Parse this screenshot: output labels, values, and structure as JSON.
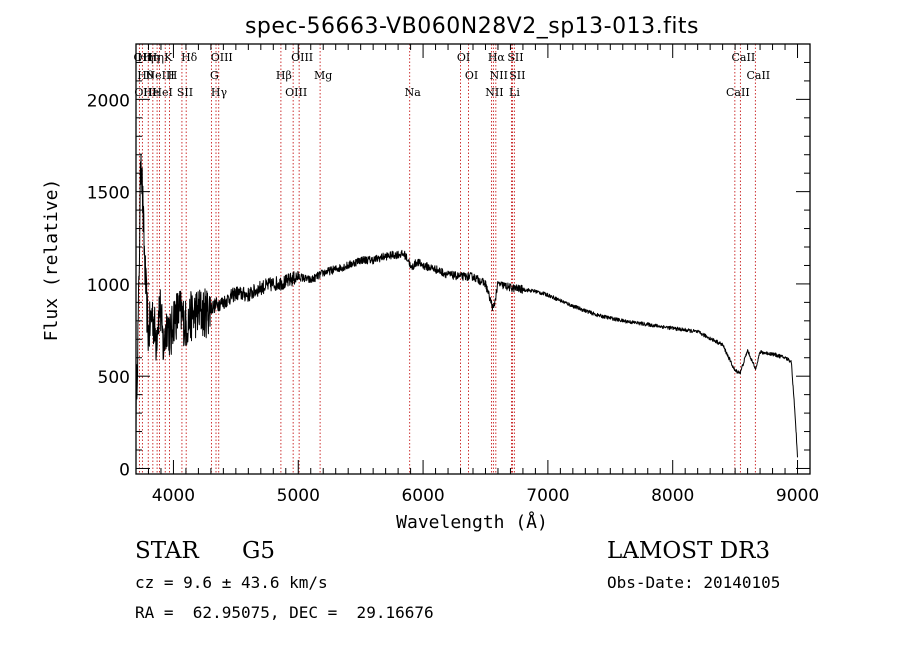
{
  "chart_data": {
    "type": "line",
    "title": "spec-56663-VB060N28V2_sp13-013.fits",
    "xlabel": "Wavelength (Å)",
    "ylabel": "Flux (relative)",
    "xlim": [
      3700,
      9100
    ],
    "ylim": [
      -30,
      2300
    ],
    "xticks": [
      4000,
      5000,
      6000,
      7000,
      8000,
      9000
    ],
    "yticks": [
      0,
      500,
      1000,
      1500,
      2000
    ],
    "grid": false,
    "series": [
      {
        "name": "spectrum",
        "x": [
          3700,
          3720,
          3740,
          3760,
          3780,
          3800,
          3830,
          3860,
          3890,
          3920,
          3950,
          3980,
          4000,
          4050,
          4100,
          4150,
          4200,
          4250,
          4300,
          4350,
          4400,
          4500,
          4600,
          4700,
          4800,
          4900,
          5000,
          5100,
          5200,
          5300,
          5400,
          5500,
          5600,
          5700,
          5800,
          5850,
          5890,
          5900,
          5950,
          6000,
          6100,
          6200,
          6300,
          6400,
          6500,
          6563,
          6600,
          6700,
          6800,
          6900,
          7000,
          7200,
          7400,
          7600,
          7800,
          8000,
          8200,
          8400,
          8498,
          8542,
          8600,
          8662,
          8700,
          8800,
          8900,
          8950,
          8980,
          9000
        ],
        "values": [
          300,
          850,
          1750,
          1300,
          950,
          720,
          850,
          700,
          900,
          650,
          800,
          700,
          820,
          850,
          780,
          830,
          850,
          840,
          870,
          890,
          900,
          950,
          940,
          980,
          1000,
          1010,
          1040,
          1020,
          1060,
          1080,
          1100,
          1130,
          1130,
          1150,
          1160,
          1160,
          1120,
          1080,
          1120,
          1100,
          1080,
          1050,
          1040,
          1040,
          1000,
          860,
          1000,
          980,
          970,
          960,
          940,
          880,
          830,
          800,
          780,
          760,
          740,
          670,
          530,
          520,
          640,
          540,
          630,
          620,
          600,
          580,
          300,
          60
        ]
      }
    ],
    "lines": [
      {
        "x": 3727,
        "labels": [
          "OII"
        ]
      },
      {
        "x": 3751,
        "labels": [
          "Hθ",
          "OIII",
          "Hη"
        ]
      },
      {
        "x": 3798,
        "labels": [
          "He",
          "Hη"
        ]
      },
      {
        "x": 3835,
        "labels": [
          "Hη"
        ]
      },
      {
        "x": 3869,
        "labels": [
          "NeIII"
        ]
      },
      {
        "x": 3889,
        "labels": [
          "HeI"
        ]
      },
      {
        "x": 3934,
        "labels": [
          "K"
        ]
      },
      {
        "x": 3969,
        "labels": [
          "H"
        ]
      },
      {
        "x": 4068,
        "labels": [
          "SII"
        ]
      },
      {
        "x": 4102,
        "labels": [
          "Hδ"
        ]
      },
      {
        "x": 4304,
        "labels": [
          "G"
        ]
      },
      {
        "x": 4341,
        "labels": [
          "Hγ"
        ]
      },
      {
        "x": 4363,
        "labels": [
          "OIII"
        ]
      },
      {
        "x": 4861,
        "labels": [
          "Hβ"
        ]
      },
      {
        "x": 4959,
        "labels": [
          "OIII"
        ]
      },
      {
        "x": 5007,
        "labels": [
          "OIII"
        ]
      },
      {
        "x": 5175,
        "labels": [
          "Mg"
        ]
      },
      {
        "x": 5893,
        "labels": [
          "Na"
        ]
      },
      {
        "x": 6300,
        "labels": [
          "OI"
        ]
      },
      {
        "x": 6364,
        "labels": [
          "OI"
        ]
      },
      {
        "x": 6548,
        "labels": [
          "NII"
        ]
      },
      {
        "x": 6563,
        "labels": [
          "Hα"
        ]
      },
      {
        "x": 6583,
        "labels": [
          "NII"
        ]
      },
      {
        "x": 6708,
        "labels": [
          "Li"
        ]
      },
      {
        "x": 6716,
        "labels": [
          "SII"
        ]
      },
      {
        "x": 6731,
        "labels": [
          "SII"
        ]
      },
      {
        "x": 8498,
        "labels": [
          "CaII"
        ]
      },
      {
        "x": 8542,
        "labels": [
          "CaII"
        ]
      },
      {
        "x": 8662,
        "labels": [
          "CaII"
        ]
      }
    ]
  },
  "info": {
    "object_class": "STAR",
    "subclass": "G5",
    "redshift": "cz = 9.6 ± 43.6 km/s",
    "coords": "RA =  62.95075, DEC =  29.16676",
    "survey": "LAMOST DR3",
    "obs_date": "Obs-Date: 20140105"
  },
  "colors": {
    "spectrum": "#000000",
    "line_markers": "#c00000",
    "axes": "#000000"
  }
}
